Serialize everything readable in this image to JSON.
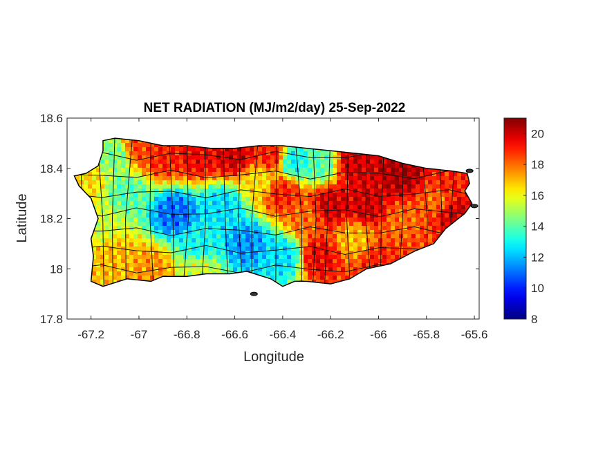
{
  "chart_data": {
    "type": "heatmap",
    "title": "NET RADIATION (MJ/m2/day) 25-Sep-2022",
    "xlabel": "Longitude",
    "ylabel": "Latitude",
    "xlim": [
      -67.3,
      -65.58
    ],
    "ylim": [
      17.8,
      18.6
    ],
    "xticks": [
      -67.2,
      -67,
      -66.8,
      -66.6,
      -66.4,
      -66.2,
      -66,
      -65.8,
      -65.6
    ],
    "xtick_labels": [
      "-67.2",
      "-67",
      "-66.8",
      "-66.6",
      "-66.4",
      "-66.2",
      "-66",
      "-65.8",
      "-65.6"
    ],
    "yticks": [
      17.8,
      18,
      18.2,
      18.4,
      18.6
    ],
    "ytick_labels": [
      "17.8",
      "18",
      "18.2",
      "18.4",
      "18.6"
    ],
    "colorbar": {
      "colormap": "jet",
      "clim": [
        8,
        21
      ],
      "ticks": [
        8,
        10,
        12,
        14,
        16,
        18,
        20
      ],
      "tick_labels": [
        "8",
        "10",
        "12",
        "14",
        "16",
        "18",
        "20"
      ]
    },
    "outline_lonlat": [
      [
        -67.27,
        18.37
      ],
      [
        -67.22,
        18.38
      ],
      [
        -67.17,
        18.41
      ],
      [
        -67.15,
        18.47
      ],
      [
        -67.15,
        18.51
      ],
      [
        -67.1,
        18.52
      ],
      [
        -67.0,
        18.51
      ],
      [
        -66.9,
        18.49
      ],
      [
        -66.8,
        18.49
      ],
      [
        -66.7,
        18.48
      ],
      [
        -66.6,
        18.48
      ],
      [
        -66.5,
        18.49
      ],
      [
        -66.4,
        18.49
      ],
      [
        -66.3,
        18.48
      ],
      [
        -66.2,
        18.47
      ],
      [
        -66.1,
        18.46
      ],
      [
        -66.0,
        18.45
      ],
      [
        -65.9,
        18.42
      ],
      [
        -65.8,
        18.4
      ],
      [
        -65.7,
        18.39
      ],
      [
        -65.63,
        18.38
      ],
      [
        -65.62,
        18.34
      ],
      [
        -65.64,
        18.31
      ],
      [
        -65.61,
        18.26
      ],
      [
        -65.64,
        18.22
      ],
      [
        -65.72,
        18.16
      ],
      [
        -65.77,
        18.1
      ],
      [
        -65.85,
        18.07
      ],
      [
        -65.95,
        18.02
      ],
      [
        -66.05,
        18.0
      ],
      [
        -66.12,
        17.96
      ],
      [
        -66.2,
        17.94
      ],
      [
        -66.3,
        17.95
      ],
      [
        -66.35,
        17.95
      ],
      [
        -66.4,
        17.93
      ],
      [
        -66.45,
        17.96
      ],
      [
        -66.55,
        17.99
      ],
      [
        -66.62,
        17.98
      ],
      [
        -66.72,
        17.98
      ],
      [
        -66.8,
        17.97
      ],
      [
        -66.9,
        17.97
      ],
      [
        -66.95,
        17.95
      ],
      [
        -67.05,
        17.96
      ],
      [
        -67.15,
        17.93
      ],
      [
        -67.2,
        17.95
      ],
      [
        -67.19,
        18.05
      ],
      [
        -67.2,
        18.12
      ],
      [
        -67.17,
        18.2
      ],
      [
        -67.2,
        18.28
      ],
      [
        -67.25,
        18.33
      ]
    ],
    "field_anchors": [
      {
        "lon": -67.22,
        "lat": 18.35,
        "value": 16.5
      },
      {
        "lon": -67.1,
        "lat": 18.45,
        "value": 14.5
      },
      {
        "lon": -67.0,
        "lat": 18.48,
        "value": 18.5
      },
      {
        "lon": -66.9,
        "lat": 18.45,
        "value": 19.0
      },
      {
        "lon": -66.75,
        "lat": 18.45,
        "value": 19.5
      },
      {
        "lon": -66.6,
        "lat": 18.45,
        "value": 20.0
      },
      {
        "lon": -66.45,
        "lat": 18.45,
        "value": 19.0
      },
      {
        "lon": -66.35,
        "lat": 18.43,
        "value": 13.0
      },
      {
        "lon": -66.25,
        "lat": 18.42,
        "value": 14.0
      },
      {
        "lon": -66.1,
        "lat": 18.42,
        "value": 20.0
      },
      {
        "lon": -65.9,
        "lat": 18.38,
        "value": 20.5
      },
      {
        "lon": -65.72,
        "lat": 18.33,
        "value": 19.0
      },
      {
        "lon": -65.68,
        "lat": 18.22,
        "value": 20.0
      },
      {
        "lon": -65.9,
        "lat": 18.18,
        "value": 18.0
      },
      {
        "lon": -66.05,
        "lat": 18.25,
        "value": 20.0
      },
      {
        "lon": -66.2,
        "lat": 18.25,
        "value": 20.0
      },
      {
        "lon": -66.4,
        "lat": 18.3,
        "value": 19.0
      },
      {
        "lon": -66.5,
        "lat": 18.35,
        "value": 16.5
      },
      {
        "lon": -66.85,
        "lat": 18.22,
        "value": 11.0
      },
      {
        "lon": -66.65,
        "lat": 18.25,
        "value": 12.5
      },
      {
        "lon": -67.05,
        "lat": 18.3,
        "value": 14.0
      },
      {
        "lon": -67.15,
        "lat": 18.18,
        "value": 15.5
      },
      {
        "lon": -66.55,
        "lat": 18.1,
        "value": 11.5
      },
      {
        "lon": -66.4,
        "lat": 18.05,
        "value": 12.5
      },
      {
        "lon": -66.75,
        "lat": 18.1,
        "value": 13.0
      },
      {
        "lon": -67.1,
        "lat": 18.05,
        "value": 17.0
      },
      {
        "lon": -66.95,
        "lat": 18.0,
        "value": 17.5
      },
      {
        "lon": -66.75,
        "lat": 17.99,
        "value": 15.5
      },
      {
        "lon": -66.25,
        "lat": 18.05,
        "value": 19.5
      },
      {
        "lon": -66.1,
        "lat": 18.12,
        "value": 17.0
      },
      {
        "lon": -66.0,
        "lat": 18.03,
        "value": 19.0
      },
      {
        "lon": -65.85,
        "lat": 18.08,
        "value": 18.5
      },
      {
        "lon": -66.3,
        "lat": 18.2,
        "value": 18.0
      },
      {
        "lon": -65.75,
        "lat": 18.28,
        "value": 18.0
      }
    ],
    "islands_lonlat": [
      {
        "lon": -66.52,
        "lat": 17.9
      },
      {
        "lon": -65.6,
        "lat": 18.25
      },
      {
        "lon": -65.62,
        "lat": 18.39
      }
    ]
  }
}
